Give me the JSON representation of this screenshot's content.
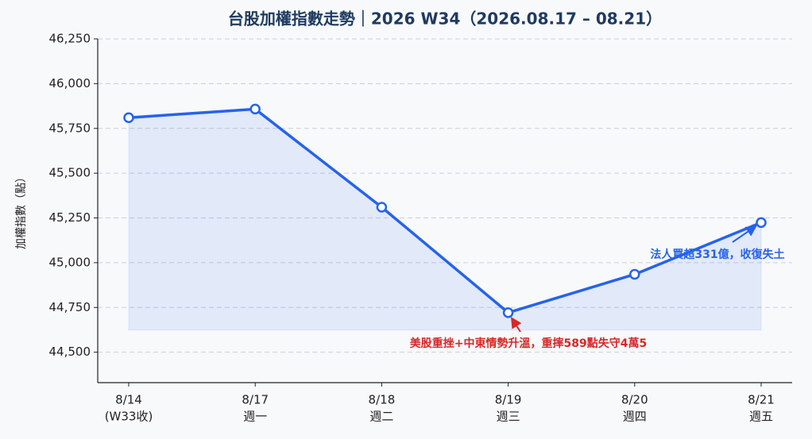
{
  "chart_data": {
    "type": "line",
    "title": "台股加權指數走勢｜2026 W34（2026.08.17 – 08.21）",
    "y_label": "加權指數（點）",
    "categories": [
      "8/14",
      "8/17",
      "8/18",
      "8/19",
      "8/20",
      "8/21"
    ],
    "category_sublabels": [
      "(W33收)",
      "週一",
      "週二",
      "週三",
      "週四",
      "週五"
    ],
    "series": [
      {
        "name": "加權指數",
        "color": "#2563eb",
        "values": [
          45810,
          45858,
          45310,
          44721,
          44935,
          45224
        ]
      }
    ],
    "ylim": [
      44330,
      46250
    ],
    "yticks": [
      {
        "value": 44500,
        "label": "44,500"
      },
      {
        "value": 44750,
        "label": "44,750"
      },
      {
        "value": 45000,
        "label": "45,000"
      },
      {
        "value": 45250,
        "label": "45,250"
      },
      {
        "value": 45500,
        "label": "45,500"
      },
      {
        "value": 45750,
        "label": "45,750"
      },
      {
        "value": 46000,
        "label": "46,000"
      },
      {
        "value": 46250,
        "label": "46,250"
      }
    ],
    "grid": true,
    "annotations": [
      {
        "text": "美股重挫+中東情勢升溫，重摔589點失守4萬5",
        "color": "#d62828"
      },
      {
        "text": "法人買超331億，收復失土",
        "color": "#2563eb"
      }
    ]
  }
}
